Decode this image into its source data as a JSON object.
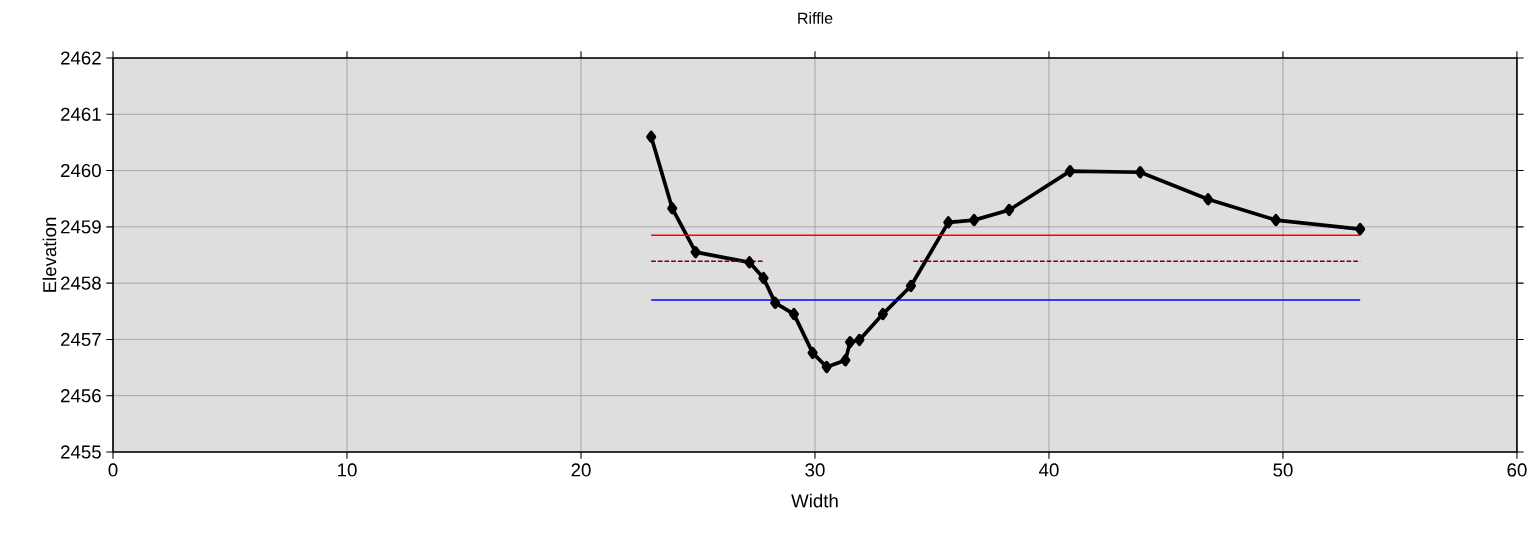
{
  "chart_data": {
    "type": "line",
    "title": "Riffle",
    "xlabel": "Width",
    "ylabel": "Elevation",
    "xlim": [
      0,
      60
    ],
    "xticks": [
      0,
      10,
      20,
      30,
      40,
      50,
      60
    ],
    "ylim": [
      2455,
      2462
    ],
    "yticks": [
      2455,
      2456,
      2457,
      2458,
      2459,
      2460,
      2461,
      2462
    ],
    "grid": true,
    "legend": false,
    "series": [
      {
        "color": "#000000",
        "marker": "diamond",
        "line_style": "solid",
        "x": [
          23.0,
          23.9,
          24.9,
          27.2,
          27.8,
          28.3,
          29.1,
          29.9,
          30.5,
          31.3,
          31.5,
          31.9,
          32.9,
          34.1,
          35.7,
          36.8,
          38.3,
          40.9,
          43.9,
          46.8,
          49.7,
          53.3
        ],
        "values": [
          2460.6,
          2459.33,
          2458.55,
          2458.37,
          2458.09,
          2457.65,
          2457.45,
          2456.76,
          2456.51,
          2456.63,
          2456.95,
          2456.99,
          2457.45,
          2457.95,
          2459.08,
          2459.12,
          2459.3,
          2459.99,
          2459.97,
          2459.49,
          2459.12,
          2458.96
        ]
      },
      {
        "color": "#ff0000",
        "marker": "none",
        "line_style": "solid",
        "x": [
          23.0,
          53.3
        ],
        "values": [
          2458.85,
          2458.85
        ]
      },
      {
        "color": "#800000",
        "marker": "none",
        "line_style": "dashed",
        "x": [
          23.0,
          27.8,
          31.0,
          34.2,
          53.3
        ],
        "values": [
          2458.39,
          2458.39,
          null,
          2458.39,
          2458.39
        ]
      },
      {
        "color": "#0000ff",
        "marker": "none",
        "line_style": "solid",
        "x": [
          23.0,
          53.3
        ],
        "values": [
          2457.7,
          2457.7
        ]
      }
    ]
  }
}
